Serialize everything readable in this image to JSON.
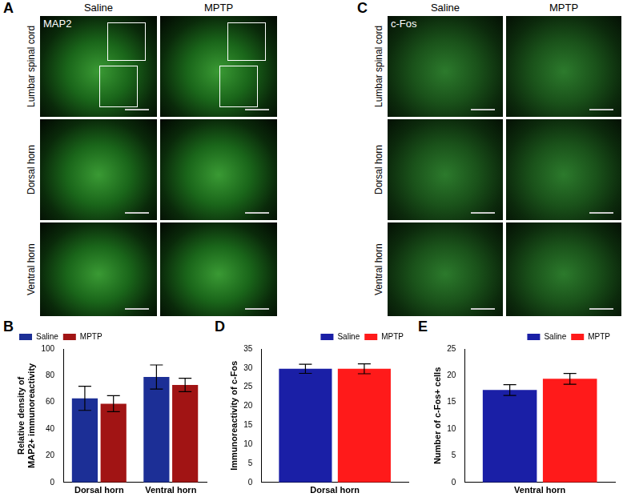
{
  "panels": [
    {
      "panel": "A",
      "stain": "MAP2",
      "columns": [
        "Saline",
        "MPTP"
      ],
      "rows": [
        "Lumbar spinal cord",
        "Dorsal horn",
        "Ventral horn"
      ]
    },
    {
      "panel": "C",
      "stain": "c-Fos",
      "columns": [
        "Saline",
        "MPTP"
      ],
      "rows": [
        "Lumbar spinal cord",
        "Dorsal horn",
        "Ventral horn"
      ]
    }
  ],
  "chart_data": [
    {
      "panel": "B",
      "type": "bar",
      "y_label": [
        "Relative density of",
        "MAP2+ immunoreactivity"
      ],
      "categories": [
        "Dorsal horn",
        "Ventral horn"
      ],
      "series": [
        {
          "name": "Saline",
          "color": "#1c2f96",
          "values": [
            63,
            79
          ],
          "errors": [
            9,
            9
          ]
        },
        {
          "name": "MPTP",
          "color": "#a11414",
          "values": [
            59,
            73
          ],
          "errors": [
            6,
            5
          ]
        }
      ],
      "ylim": [
        0,
        100
      ],
      "yticks": [
        0,
        20,
        40,
        60,
        80,
        100
      ],
      "grid": false,
      "legend": "upper left"
    },
    {
      "panel": "D",
      "type": "bar",
      "y_label": "Immunoreactivity of c-Fos",
      "categories": [
        "Dorsal horn"
      ],
      "series": [
        {
          "name": "Saline",
          "color": "#1a1fa6",
          "values": [
            29.8
          ],
          "errors": [
            1.2
          ]
        },
        {
          "name": "MPTP",
          "color": "#ff1a1a",
          "values": [
            29.8
          ],
          "errors": [
            1.3
          ]
        }
      ],
      "ylim": [
        0,
        35
      ],
      "yticks": [
        0,
        5,
        10,
        15,
        20,
        25,
        30,
        35
      ],
      "grid": false,
      "legend": "upper right"
    },
    {
      "panel": "E",
      "type": "bar",
      "y_label": "Number of c-Fos+ cells",
      "categories": [
        "Ventral horn"
      ],
      "series": [
        {
          "name": "Saline",
          "color": "#1a1fa6",
          "values": [
            17.3
          ],
          "errors": [
            1.0
          ]
        },
        {
          "name": "MPTP",
          "color": "#ff1a1a",
          "values": [
            19.4
          ],
          "errors": [
            1.0
          ]
        }
      ],
      "ylim": [
        0,
        25
      ],
      "yticks": [
        0,
        5,
        10,
        15,
        20,
        25
      ],
      "grid": false,
      "legend": "upper right"
    }
  ]
}
